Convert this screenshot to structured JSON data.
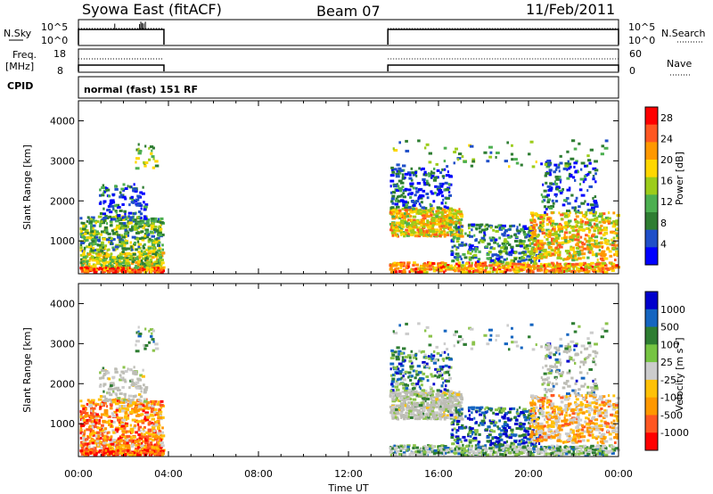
{
  "header": {
    "title": "Syowa East (fitACF)",
    "beam": "Beam 07",
    "date": "11/Feb/2011"
  },
  "panels": {
    "nsky_label": "N.Sky",
    "nsky_top": "10^5",
    "nsky_bottom": "10^0",
    "nsearch_label": "N.Search",
    "nsearch_top": "10^5",
    "nsearch_bottom": "10^0",
    "freq_label": "Freq.",
    "freq_unit": "[MHz]",
    "freq_top": "18",
    "freq_bottom": "8",
    "nave_label": "Nave",
    "nave_top": "60",
    "nave_bottom": "0",
    "cpid_label": "CPID",
    "cpid_value": "normal (fast) 151 RF"
  },
  "colors": {
    "power": [
      "#0000ff",
      "#1f4fc8",
      "#2e7d32",
      "#4caf50",
      "#9ccc1a",
      "#ffd700",
      "#ff9800",
      "#ff5722",
      "#ff0000"
    ],
    "velocity": [
      "#ff0000",
      "#ff5722",
      "#ff9800",
      "#ffc107",
      "#cccccc",
      "#cccccc",
      "#8bc34a",
      "#2e7d32",
      "#1565c0",
      "#0000cc"
    ],
    "ground_scatter": "#bdbdb5"
  },
  "chart_data": [
    {
      "type": "heatmap",
      "name": "power",
      "ylabel": "Slant Range [km]",
      "xlabel": "",
      "x_ticks": [
        "00:00",
        "04:00",
        "08:00",
        "12:00",
        "16:00",
        "20:00",
        "00:00"
      ],
      "y_ticks": [
        "1000",
        "2000",
        "3000",
        "4000"
      ],
      "xlim_hours": [
        0,
        24
      ],
      "ylim_km": [
        180,
        4500
      ],
      "colorbar_label": "Power [dB]",
      "colorbar_ticks": [
        "4",
        "8",
        "12",
        "16",
        "20",
        "24",
        "28"
      ],
      "colorbar_range": [
        0,
        30
      ],
      "data_gap_hours": [
        3.8,
        13.75
      ]
    },
    {
      "type": "heatmap",
      "name": "velocity",
      "ylabel": "Slant Range [km]",
      "xlabel": "Time UT",
      "x_ticks": [
        "00:00",
        "04:00",
        "08:00",
        "12:00",
        "16:00",
        "20:00",
        "00:00"
      ],
      "y_ticks": [
        "1000",
        "2000",
        "3000",
        "4000"
      ],
      "xlim_hours": [
        0,
        24
      ],
      "ylim_km": [
        180,
        4500
      ],
      "colorbar_label": "Velocity [m s",
      "colorbar_label_exponent": "-1",
      "colorbar_label_close": "]",
      "colorbar_ticks": [
        "1000",
        "500",
        "100",
        "25",
        "-25",
        "-100",
        "-500",
        "-1000"
      ],
      "data_gap_hours": [
        3.8,
        13.75
      ]
    }
  ]
}
